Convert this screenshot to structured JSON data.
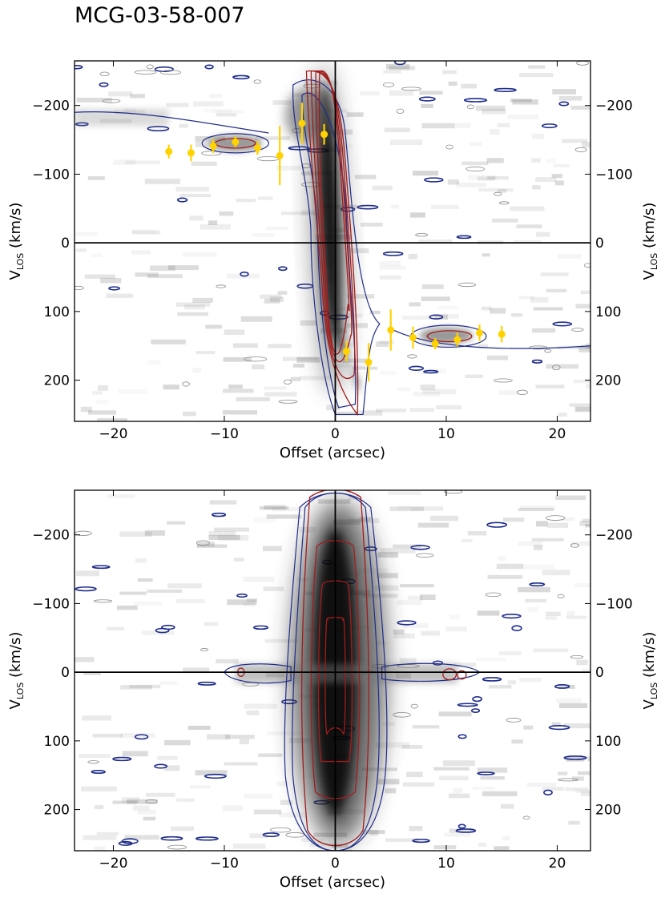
{
  "title": "MCG-03-58-007",
  "colors": {
    "observation_grey": "#1a1a1a",
    "blue_contours": "#1f2d8a",
    "red_contours": "#a11d1d",
    "grey_contours": "#8c8c8c",
    "points": "#ffd200",
    "axes": "#000000"
  },
  "chart_data": [
    {
      "type": "heatmap",
      "panel": "top",
      "title": "",
      "xlabel": "Offset (arcsec)",
      "ylabel": "V_LOS (km/s)",
      "ylabel_main": "V",
      "ylabel_sub": "LOS",
      "ylabel_unit": " (km/s)",
      "xlim": [
        -23.5,
        23
      ],
      "ylim": [
        260,
        -265
      ],
      "y_inverted": true,
      "xticks": [
        -20,
        -10,
        0,
        10,
        20
      ],
      "yticks": [
        -200,
        -100,
        0,
        100,
        200
      ],
      "xtick_labels": [
        "−20",
        "−10",
        "0",
        "10",
        "20"
      ],
      "ytick_labels": [
        "−200",
        "−100",
        "0",
        "100",
        "200"
      ],
      "reference_lines": {
        "x": 0,
        "y": 0
      },
      "rotation_points": {
        "x": [
          -15,
          -13,
          -11,
          -9,
          -7,
          -5,
          -3,
          -1,
          1,
          3,
          5,
          7,
          9,
          11,
          13,
          15
        ],
        "y": [
          -133,
          -131,
          -141,
          -147,
          -138,
          -127,
          -174,
          -158,
          158,
          174,
          127,
          138,
          147,
          141,
          131,
          133
        ],
        "err": [
          10,
          12,
          10,
          8,
          10,
          43,
          30,
          15,
          15,
          28,
          30,
          16,
          8,
          10,
          12,
          12
        ]
      }
    },
    {
      "type": "heatmap",
      "panel": "bottom",
      "title": "",
      "xlabel": "Offset (arcsec)",
      "ylabel": "V_LOS (km/s)",
      "ylabel_main": "V",
      "ylabel_sub": "LOS",
      "ylabel_unit": " (km/s)",
      "xlim": [
        -23.5,
        23
      ],
      "ylim": [
        260,
        -265
      ],
      "y_inverted": true,
      "xticks": [
        -20,
        -10,
        0,
        10,
        20
      ],
      "yticks": [
        -200,
        -100,
        0,
        100,
        200
      ],
      "xtick_labels": [
        "−20",
        "−10",
        "0",
        "10",
        "20"
      ],
      "ytick_labels": [
        "−200",
        "−100",
        "0",
        "100",
        "200"
      ],
      "reference_lines": {
        "x": 0,
        "y": 0
      }
    }
  ]
}
